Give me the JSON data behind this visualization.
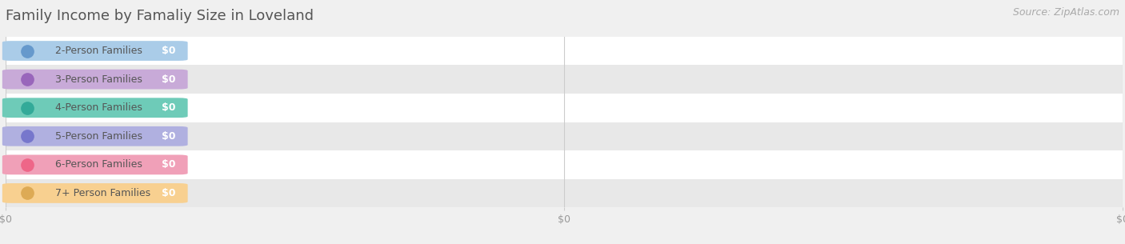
{
  "title": "Family Income by Famaliy Size in Loveland",
  "source": "Source: ZipAtlas.com",
  "categories": [
    "2-Person Families",
    "3-Person Families",
    "4-Person Families",
    "5-Person Families",
    "6-Person Families",
    "7+ Person Families"
  ],
  "values": [
    0,
    0,
    0,
    0,
    0,
    0
  ],
  "bar_colors": [
    "#aacce8",
    "#c8aad8",
    "#6ecbb8",
    "#b0b0e0",
    "#f0a0b8",
    "#f8d090"
  ],
  "dot_colors": [
    "#6699cc",
    "#9966bb",
    "#33aa99",
    "#7777cc",
    "#ee6688",
    "#ddaa55"
  ],
  "bg_color": "#f0f0f0",
  "row_bg_even": "#ffffff",
  "row_bg_odd": "#e8e8e8",
  "xlabel_color": "#999999",
  "title_color": "#555555",
  "label_color": "#555555",
  "value_color": "#ffffff",
  "source_color": "#aaaaaa",
  "title_fontsize": 13,
  "label_fontsize": 9,
  "tick_fontsize": 9,
  "source_fontsize": 9
}
